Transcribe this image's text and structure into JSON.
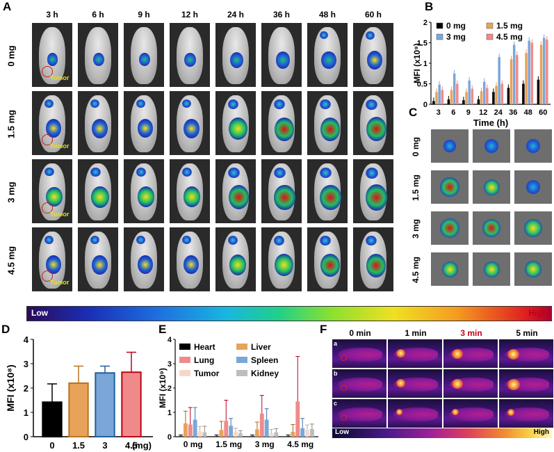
{
  "panel_letters": {
    "a": "A",
    "b": "B",
    "c": "C",
    "d": "D",
    "e": "E",
    "f": "F"
  },
  "panel_a": {
    "timepoints": [
      "3 h",
      "6 h",
      "9 h",
      "12 h",
      "24 h",
      "36 h",
      "48 h",
      "60 h"
    ],
    "doses": [
      "0 mg",
      "1.5 mg",
      "3 mg",
      "4.5 mg"
    ],
    "tumor_label": "Tumor"
  },
  "colorbar": {
    "low": "Low",
    "high": "High"
  },
  "panel_c": {
    "doses": [
      "0 mg",
      "1.5 mg",
      "3 mg",
      "4.5 mg"
    ]
  },
  "panel_f": {
    "times": [
      "0 min",
      "1 min",
      "3 min",
      "5 min"
    ],
    "rows": [
      "a",
      "b",
      "c"
    ],
    "low": "Low",
    "high": "High",
    "time_colors": [
      "#000000",
      "#000000",
      "#c0001a",
      "#000000"
    ]
  },
  "chart_data": [
    {
      "id": "B",
      "type": "bar",
      "ylabel": "MFI (x10⁹)",
      "xlabel": "Time (h)",
      "ylim": [
        0,
        2
      ],
      "yticks": [
        "0",
        "0.5",
        "1",
        "1.5",
        "2"
      ],
      "categories": [
        "3",
        "6",
        "9",
        "12",
        "24",
        "36",
        "48",
        "60"
      ],
      "legend_position": "top",
      "series": [
        {
          "name": "0 mg",
          "color": "#000000",
          "values": [
            0.08,
            0.12,
            0.1,
            0.12,
            0.3,
            0.4,
            0.5,
            0.6
          ]
        },
        {
          "name": "1.5 mg",
          "color": "#e8a25a",
          "values": [
            0.3,
            0.35,
            0.3,
            0.32,
            0.45,
            1.1,
            1.25,
            1.45
          ]
        },
        {
          "name": "3 mg",
          "color": "#7aa7d8",
          "values": [
            0.48,
            0.75,
            0.58,
            0.55,
            1.15,
            1.45,
            1.55,
            1.62
          ]
        },
        {
          "name": "4.5 mg",
          "color": "#f08a8a",
          "values": [
            0.35,
            0.5,
            0.38,
            0.4,
            0.5,
            1.2,
            1.5,
            1.58
          ]
        }
      ]
    },
    {
      "id": "D",
      "type": "bar",
      "ylabel": "MFI (x10⁸)",
      "xlabel": "(mg)",
      "ylim": [
        0,
        4
      ],
      "yticks": [
        "0",
        "1",
        "2",
        "3",
        "4"
      ],
      "categories": [
        "0",
        "1.5",
        "3",
        "4.5"
      ],
      "values": [
        1.42,
        2.2,
        2.62,
        2.65
      ],
      "errors": [
        0.75,
        0.7,
        0.28,
        0.82
      ],
      "colors": [
        "#000000",
        "#e8a25a",
        "#7aa7d8",
        "#f08a8a"
      ],
      "edge_colors": [
        "#000000",
        "#b8741e",
        "#1f5f9f",
        "#c0001a"
      ]
    },
    {
      "id": "E",
      "type": "bar",
      "ylabel": "MFI (x10⁹)",
      "ylim": [
        0,
        4
      ],
      "yticks": [
        "0",
        "1",
        "2",
        "3",
        "4"
      ],
      "categories": [
        "0 mg",
        "1.5 mg",
        "3 mg",
        "4.5 mg"
      ],
      "legend_position": "top-left",
      "series": [
        {
          "name": "Heart",
          "color": "#000000",
          "values": [
            0.02,
            0.02,
            0.02,
            0.02
          ],
          "errors": [
            0.05,
            0.05,
            0.05,
            0.05
          ]
        },
        {
          "name": "Liver",
          "color": "#e8a25a",
          "values": [
            0.55,
            0.28,
            0.3,
            0.2
          ],
          "errors": [
            0.5,
            0.35,
            0.3,
            0.3
          ]
        },
        {
          "name": "Lung",
          "color": "#f08a8a",
          "values": [
            0.5,
            0.65,
            0.95,
            1.45
          ],
          "errors": [
            0.7,
            0.85,
            0.75,
            1.85
          ]
        },
        {
          "name": "Spleen",
          "color": "#7aa7d8",
          "values": [
            0.7,
            0.45,
            0.7,
            0.35
          ],
          "errors": [
            0.5,
            0.3,
            0.45,
            0.4
          ]
        },
        {
          "name": "Tumor",
          "color": "#f7d8c8",
          "values": [
            0.22,
            0.2,
            0.15,
            0.28
          ],
          "errors": [
            0.2,
            0.15,
            0.15,
            0.2
          ]
        },
        {
          "name": "Kidney",
          "color": "#bdbdbd",
          "values": [
            0.18,
            0.15,
            0.18,
            0.32
          ],
          "errors": [
            0.25,
            0.1,
            0.15,
            0.2
          ]
        }
      ]
    }
  ]
}
